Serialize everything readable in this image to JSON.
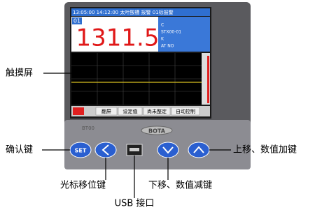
{
  "screen": {
    "status_bar": "13:05:00  14:12:00  太叶酸槽 报警  01标报警",
    "channel": "01",
    "reading": "1311.5",
    "info": [
      "C",
      "STX00-01",
      "K",
      "AT NO"
    ],
    "buttons": [
      "翻屏",
      "设定值",
      "尚未整定",
      "自动控制"
    ]
  },
  "device": {
    "model": "BT00",
    "brand": "BOTA",
    "set_key": "SET"
  },
  "callouts": {
    "touch_screen": "触摸屏",
    "confirm_key": "确认键",
    "cursor_key": "光标移位键",
    "usb": "USB 接口",
    "down_key": "下移、数值减键",
    "up_key": "上移、数值加键"
  }
}
